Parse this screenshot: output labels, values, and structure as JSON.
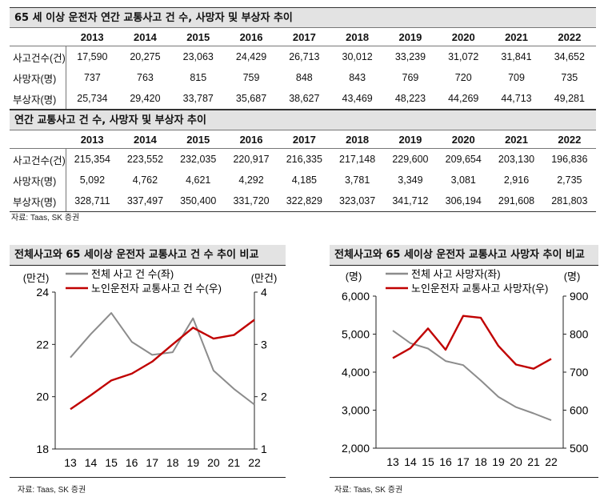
{
  "table1": {
    "title": "65 세 이상 운전자 연간 교통사고 건 수, 사망자 및 부상자 추이",
    "years": [
      "2013",
      "2014",
      "2015",
      "2016",
      "2017",
      "2018",
      "2019",
      "2020",
      "2021",
      "2022"
    ],
    "rows": [
      {
        "label": "사고건수(건)",
        "values": [
          "17,590",
          "20,275",
          "23,063",
          "24,429",
          "26,713",
          "30,012",
          "33,239",
          "31,072",
          "31,841",
          "34,652"
        ]
      },
      {
        "label": "사망자(명)",
        "values": [
          "737",
          "763",
          "815",
          "759",
          "848",
          "843",
          "769",
          "720",
          "709",
          "735"
        ]
      },
      {
        "label": "부상자(명)",
        "values": [
          "25,734",
          "29,420",
          "33,787",
          "35,687",
          "38,627",
          "43,469",
          "48,223",
          "44,269",
          "44,713",
          "49,281"
        ]
      }
    ]
  },
  "table2": {
    "title": "연간 교통사고 건 수, 사망자 및 부상자 추이",
    "years": [
      "2013",
      "2014",
      "2015",
      "2016",
      "2017",
      "2018",
      "2019",
      "2020",
      "2021",
      "2022"
    ],
    "rows": [
      {
        "label": "사고건수(건)",
        "values": [
          "215,354",
          "223,552",
          "232,035",
          "220,917",
          "216,335",
          "217,148",
          "229,600",
          "209,654",
          "203,130",
          "196,836"
        ]
      },
      {
        "label": "사망자(명)",
        "values": [
          "5,092",
          "4,762",
          "4,621",
          "4,292",
          "4,185",
          "3,781",
          "3,349",
          "3,081",
          "2,916",
          "2,735"
        ]
      },
      {
        "label": "부상자(명)",
        "values": [
          "328,711",
          "337,497",
          "350,400",
          "331,720",
          "322,829",
          "323,037",
          "341,712",
          "306,194",
          "291,608",
          "281,803"
        ]
      }
    ]
  },
  "source_text": "자료: Taas, SK 증권",
  "colors": {
    "gray": "#8c8c8c",
    "red": "#c00000",
    "header_bg": "#e3e3e3"
  },
  "chart_data": [
    {
      "type": "line",
      "title": "전체사고와 65 세이상 운전자 교통사고 건 수 추이 비교",
      "x": [
        "13",
        "14",
        "15",
        "16",
        "17",
        "18",
        "19",
        "20",
        "21",
        "22"
      ],
      "left_unit": "(만건)",
      "right_unit": "(만건)",
      "left_ticks": [
        "18",
        "20",
        "22",
        "24"
      ],
      "right_ticks": [
        "1",
        "2",
        "3",
        "4"
      ],
      "ylim_left": [
        18,
        24
      ],
      "ylim_right": [
        1,
        4
      ],
      "series": [
        {
          "name": "전체 사고 건 수(좌)",
          "axis": "left",
          "color": "#8c8c8c",
          "values": [
            21.5,
            22.4,
            23.2,
            22.1,
            21.6,
            21.7,
            23.0,
            21.0,
            20.3,
            19.7
          ]
        },
        {
          "name": "노인운전자 교통사고 건 수(우)",
          "axis": "right",
          "color": "#c00000",
          "values": [
            1.76,
            2.03,
            2.31,
            2.44,
            2.67,
            3.0,
            3.32,
            3.11,
            3.18,
            3.47
          ]
        }
      ]
    },
    {
      "type": "line",
      "title": "전체사고와 65 세이상 운전자 교통사고 사망자 추이 비교",
      "x": [
        "13",
        "14",
        "15",
        "16",
        "17",
        "18",
        "19",
        "20",
        "21",
        "22"
      ],
      "left_unit": "(명)",
      "right_unit": "(명)",
      "left_ticks": [
        "2,000",
        "3,000",
        "4,000",
        "5,000",
        "6,000"
      ],
      "right_ticks": [
        "500",
        "600",
        "700",
        "800",
        "900"
      ],
      "ylim_left": [
        2000,
        6000
      ],
      "ylim_right": [
        500,
        900
      ],
      "series": [
        {
          "name": "전체 사고 사망자(좌)",
          "axis": "left",
          "color": "#8c8c8c",
          "values": [
            5092,
            4762,
            4621,
            4292,
            4185,
            3781,
            3349,
            3081,
            2916,
            2735
          ]
        },
        {
          "name": "노인운전자 교통사고 사망자(우)",
          "axis": "right",
          "color": "#c00000",
          "values": [
            737,
            763,
            815,
            759,
            848,
            843,
            769,
            720,
            709,
            735
          ]
        }
      ]
    }
  ]
}
